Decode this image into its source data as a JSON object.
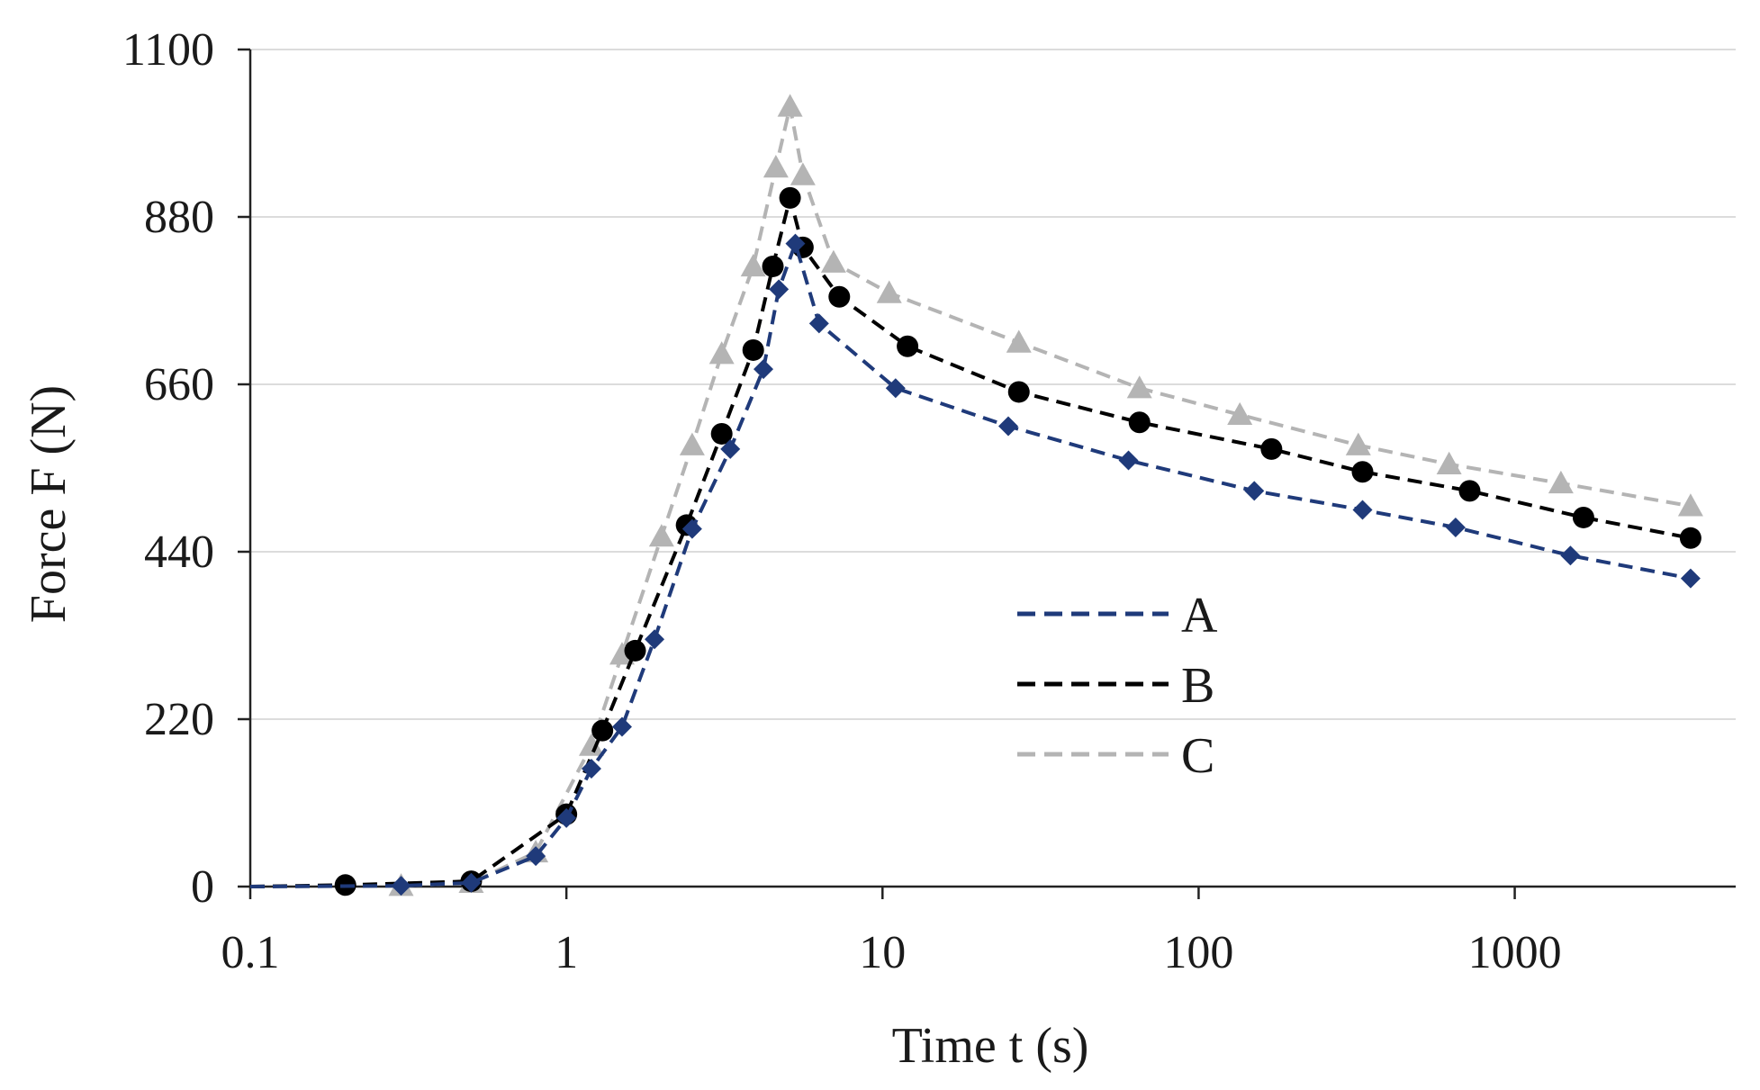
{
  "chart_data": {
    "type": "line",
    "xlabel": "Time t (s)",
    "ylabel": "Force F (N)",
    "xscale": "log",
    "xlim": [
      0.1,
      5000
    ],
    "ylim": [
      0,
      1100
    ],
    "xticks": [
      0.1,
      1,
      10,
      100,
      1000
    ],
    "xtick_labels": [
      "0.1",
      "1",
      "10",
      "100",
      "1000"
    ],
    "yticks": [
      0,
      220,
      440,
      660,
      880,
      1100
    ],
    "ytick_labels": [
      "0",
      "220",
      "440",
      "660",
      "880",
      "1100"
    ],
    "grid": "horizontal",
    "legend_position": "center-right",
    "series": [
      {
        "name": "A",
        "color": "#1f3a7a",
        "marker": "diamond",
        "dash": "dashed",
        "x": [
          0.1,
          0.3,
          0.5,
          0.8,
          1.0,
          1.2,
          1.5,
          1.9,
          2.5,
          3.3,
          4.2,
          4.7,
          5.3,
          6.3,
          11,
          25,
          60,
          150,
          330,
          650,
          1500,
          3600
        ],
        "y": [
          0,
          1,
          5,
          40,
          90,
          155,
          210,
          325,
          470,
          575,
          680,
          785,
          845,
          740,
          655,
          605,
          560,
          520,
          495,
          472,
          435,
          405
        ]
      },
      {
        "name": "B",
        "color": "#000000",
        "marker": "circle",
        "dash": "dashed",
        "x": [
          0.1,
          0.2,
          0.5,
          1.0,
          1.3,
          1.65,
          2.4,
          3.1,
          3.9,
          4.5,
          5.1,
          5.6,
          7.3,
          12,
          27,
          65,
          170,
          330,
          720,
          1650,
          3600
        ],
        "y": [
          0,
          2,
          7,
          95,
          205,
          310,
          475,
          595,
          705,
          815,
          905,
          840,
          775,
          710,
          650,
          610,
          575,
          545,
          520,
          485,
          458
        ]
      },
      {
        "name": "C",
        "color": "#b4b4b4",
        "marker": "triangle",
        "dash": "dashed",
        "x": [
          0.1,
          0.3,
          0.5,
          0.8,
          1.2,
          1.5,
          2.0,
          2.5,
          3.1,
          3.9,
          4.6,
          5.1,
          5.6,
          7.0,
          10.5,
          27,
          65,
          135,
          320,
          620,
          1400,
          3600
        ],
        "y": [
          0,
          1,
          5,
          45,
          185,
          305,
          460,
          580,
          700,
          815,
          945,
          1025,
          935,
          820,
          780,
          715,
          655,
          620,
          580,
          555,
          530,
          500
        ]
      }
    ]
  }
}
